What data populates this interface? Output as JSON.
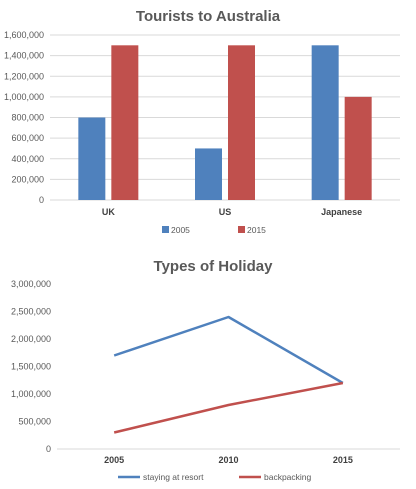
{
  "chart_data": [
    {
      "type": "bar",
      "title": "Tourists to Australia",
      "categories": [
        "UK",
        "US",
        "Japanese"
      ],
      "series": [
        {
          "name": "2005",
          "values": [
            800000,
            500000,
            1500000
          ],
          "color": "#4f81bd"
        },
        {
          "name": "2015",
          "values": [
            1500000,
            1500000,
            1000000
          ],
          "color": "#c0504d"
        }
      ],
      "ylim": [
        0,
        1600000
      ],
      "yticks": [
        0,
        200000,
        400000,
        600000,
        800000,
        1000000,
        1200000,
        1400000,
        1600000
      ],
      "ytick_labels": [
        "0",
        "200,000",
        "400,000",
        "600,000",
        "800,000",
        "1,000,000",
        "1,200,000",
        "1,400,000",
        "1,600,000"
      ],
      "grid": true,
      "legend": "bottom"
    },
    {
      "type": "line",
      "title": "Types of Holiday",
      "x": [
        "2005",
        "2010",
        "2015"
      ],
      "series": [
        {
          "name": "staying at resort",
          "values": [
            1700000,
            2400000,
            1200000
          ],
          "color": "#4f81bd"
        },
        {
          "name": "backpacking",
          "values": [
            300000,
            800000,
            1200000
          ],
          "color": "#c0504d"
        }
      ],
      "ylim": [
        0,
        3000000
      ],
      "yticks": [
        0,
        500000,
        1000000,
        1500000,
        2000000,
        2500000,
        3000000
      ],
      "ytick_labels": [
        "0",
        "500,000",
        "1,000,000",
        "1,500,000",
        "2,000,000",
        "2,500,000",
        "3,000,000"
      ],
      "grid": false,
      "legend": "bottom"
    }
  ]
}
